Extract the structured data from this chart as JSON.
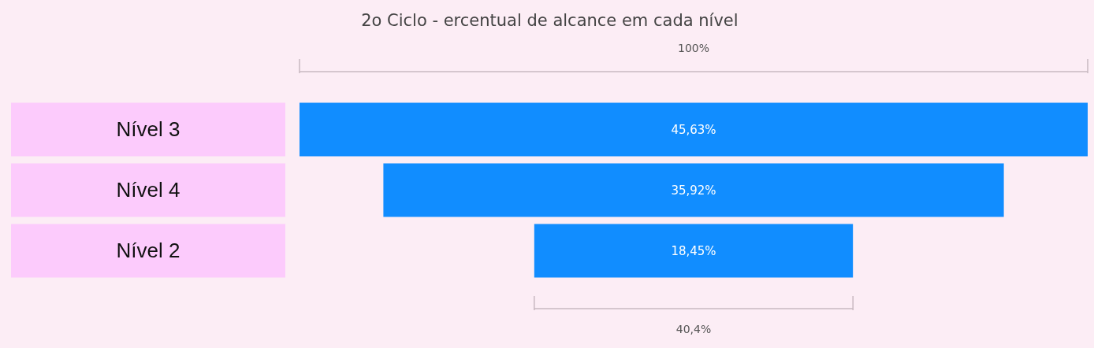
{
  "chart_data": {
    "type": "other",
    "title": "2o Ciclo - ercentual de alcance em cada nível",
    "categories": [
      "Nível 3",
      "Nível 4",
      "Nível 2"
    ],
    "values": [
      45.63,
      35.92,
      18.45
    ],
    "value_labels": [
      "45,63%",
      "35,92%",
      "18,45%"
    ],
    "color": "#118dff",
    "annotations": [
      "100%",
      "40,4%"
    ]
  }
}
